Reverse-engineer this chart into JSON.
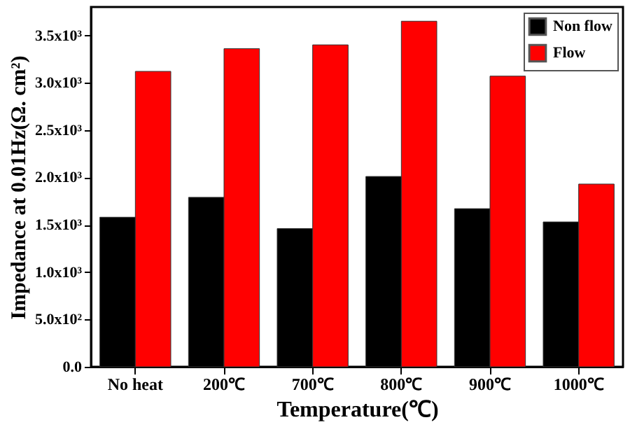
{
  "chart_data": {
    "type": "bar",
    "xlabel": "Temperature(℃)",
    "ylabel": "Impedance at 0.01Hz(Ω. cm²)",
    "categories": [
      "No heat",
      "200℃",
      "700℃",
      "800℃",
      "900℃",
      "1000℃"
    ],
    "series": [
      {
        "name": "Non flow",
        "color": "#000000",
        "values": [
          1580,
          1790,
          1460,
          2010,
          1670,
          1530
        ]
      },
      {
        "name": "Flow",
        "color": "#ff0000",
        "values": [
          3120,
          3360,
          3400,
          3650,
          3070,
          1930
        ]
      }
    ],
    "ylim": [
      0,
      3800
    ],
    "yticks": [
      {
        "value": 0,
        "label": "0.0"
      },
      {
        "value": 500,
        "label": "5.0x10²"
      },
      {
        "value": 1000,
        "label": "1.0x10³"
      },
      {
        "value": 1500,
        "label": "1.5x10³"
      },
      {
        "value": 2000,
        "label": "2.0x10³"
      },
      {
        "value": 2500,
        "label": "2.5x10³"
      },
      {
        "value": 3000,
        "label": "3.0x10³"
      },
      {
        "value": 3500,
        "label": "3.5x10³"
      }
    ],
    "legend": "top right",
    "grid": false
  }
}
